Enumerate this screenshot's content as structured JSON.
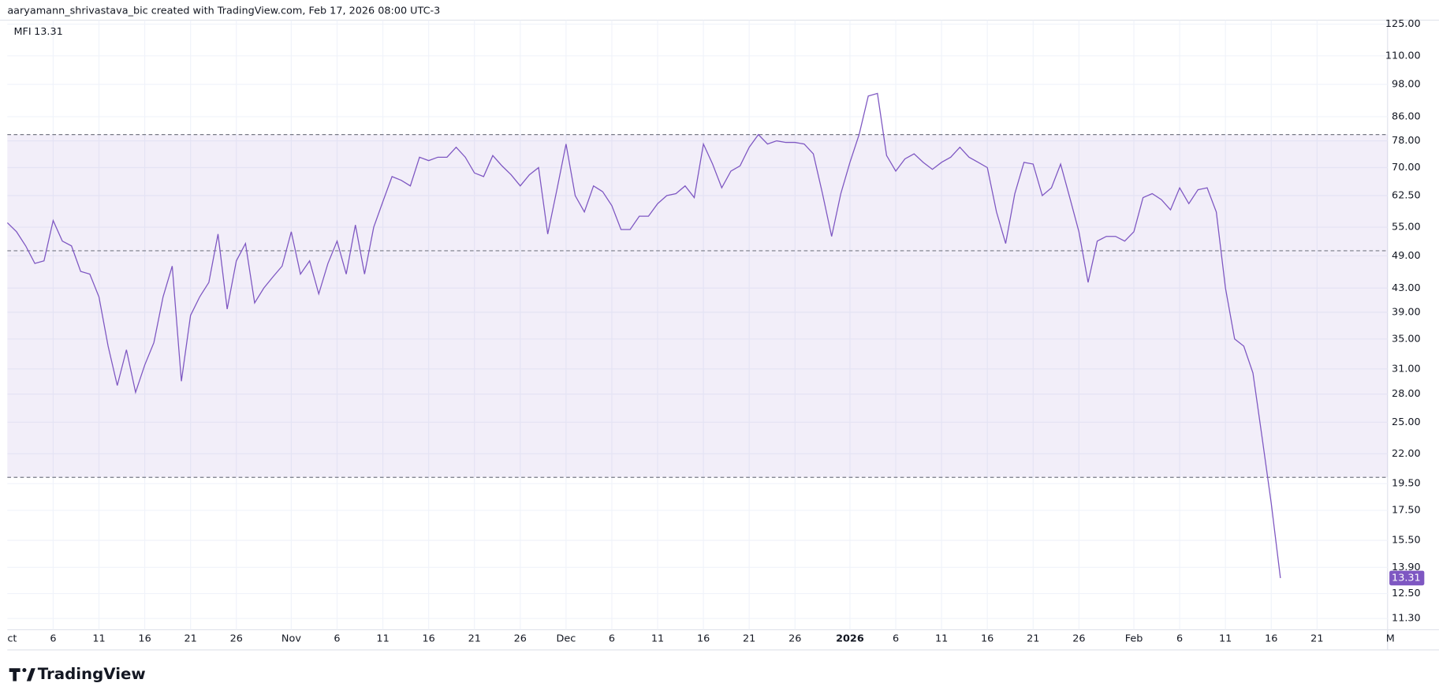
{
  "header": {
    "text": "aaryamann_shrivastava_bic created with TradingView.com, Feb 17, 2026 08:00 UTC-3"
  },
  "footer": {
    "brand": "TradingView"
  },
  "chart_data": {
    "type": "line",
    "categories": [
      "ct",
      null,
      null,
      null,
      null,
      "6",
      null,
      null,
      null,
      null,
      "11",
      null,
      null,
      null,
      null,
      "16",
      null,
      null,
      null,
      null,
      "21",
      null,
      null,
      null,
      null,
      "26",
      null,
      null,
      null,
      null,
      null,
      "Nov",
      null,
      null,
      null,
      null,
      "6",
      null,
      null,
      null,
      null,
      "11",
      null,
      null,
      null,
      null,
      "16",
      null,
      null,
      null,
      null,
      "21",
      null,
      null,
      null,
      null,
      "26",
      null,
      null,
      null,
      null,
      "Dec",
      null,
      null,
      null,
      null,
      "6",
      null,
      null,
      null,
      null,
      "11",
      null,
      null,
      null,
      null,
      "16",
      null,
      null,
      null,
      null,
      "21",
      null,
      null,
      null,
      null,
      "26",
      null,
      null,
      null,
      null,
      null,
      "2026",
      null,
      null,
      null,
      null,
      "6",
      null,
      null,
      null,
      null,
      "11",
      null,
      null,
      null,
      null,
      "16",
      null,
      null,
      null,
      null,
      "21",
      null,
      null,
      null,
      null,
      "26",
      null,
      null,
      null,
      null,
      null,
      "Feb",
      null,
      null,
      null,
      null,
      "6",
      null,
      null,
      null,
      null,
      "11",
      null,
      null,
      null,
      null,
      "16",
      null,
      null,
      null,
      null,
      "21",
      null,
      null,
      null,
      null,
      null,
      null,
      null,
      "M"
    ],
    "series": [
      {
        "name": "MFI",
        "color": "#7e57c2",
        "values": [
          56,
          54,
          51,
          47.5,
          48,
          56.5,
          52,
          51,
          46,
          45.5,
          41.5,
          34,
          29,
          33.5,
          28.2,
          31.5,
          34.5,
          41.5,
          47,
          29.5,
          38.5,
          41.5,
          44,
          53.5,
          39.5,
          48,
          51.5,
          40.5,
          43,
          45,
          47,
          54,
          45.5,
          48,
          42,
          47.5,
          52,
          45.5,
          55.5,
          45.5,
          55,
          61,
          67.5,
          66.5,
          65,
          73,
          72,
          73,
          73,
          76,
          73,
          68.5,
          67.5,
          73.5,
          70.5,
          68,
          65,
          68,
          70,
          53.5,
          64,
          77,
          62.5,
          58.5,
          65,
          63.5,
          60,
          54.5,
          54.5,
          57.5,
          57.5,
          60.5,
          62.5,
          63,
          65,
          62,
          77,
          71,
          64.5,
          69,
          70.5,
          76,
          80,
          77,
          78,
          77.5,
          77.5,
          77,
          74,
          63,
          53,
          63,
          71.5,
          80,
          93.5,
          94.5,
          73.5,
          69,
          72.5,
          74,
          71.5,
          69.5,
          71.5,
          73,
          76,
          73,
          71.5,
          70,
          58.5,
          51.5,
          63,
          71.5,
          71,
          62.5,
          64.5,
          71,
          62,
          54,
          44,
          52,
          53,
          53,
          52,
          54,
          62,
          63,
          61.5,
          59,
          64.5,
          60.5,
          64,
          64.5,
          58.5,
          43,
          35,
          34,
          30.5,
          23.5,
          18,
          13.31,
          null,
          null,
          null,
          null,
          null,
          null,
          null,
          null,
          null,
          null,
          null,
          null
        ]
      }
    ],
    "ylim": [
      10.8,
      128
    ],
    "log_scale": true,
    "yticks": [
      {
        "value": 125,
        "label": "125.00"
      },
      {
        "value": 110,
        "label": "110.00"
      },
      {
        "value": 98,
        "label": "98.00"
      },
      {
        "value": 86,
        "label": "86.00"
      },
      {
        "value": 78,
        "label": "78.00"
      },
      {
        "value": 70,
        "label": "70.00"
      },
      {
        "value": 62.5,
        "label": "62.50"
      },
      {
        "value": 55,
        "label": "55.00"
      },
      {
        "value": 49,
        "label": "49.00"
      },
      {
        "value": 43,
        "label": "43.00"
      },
      {
        "value": 39,
        "label": "39.00"
      },
      {
        "value": 35,
        "label": "35.00"
      },
      {
        "value": 31,
        "label": "31.00"
      },
      {
        "value": 28,
        "label": "28.00"
      },
      {
        "value": 25,
        "label": "25.00"
      },
      {
        "value": 22,
        "label": "22.00"
      },
      {
        "value": 19.5,
        "label": "19.50"
      },
      {
        "value": 17.5,
        "label": "17.50"
      },
      {
        "value": 15.5,
        "label": "15.50"
      },
      {
        "value": 13.9,
        "label": "13.90"
      },
      {
        "value": 12.5,
        "label": "12.50"
      },
      {
        "value": 11.3,
        "label": "11.30"
      }
    ],
    "bands": {
      "upper": 80,
      "middle": 50,
      "lower": 20
    },
    "grid": true
  }
}
